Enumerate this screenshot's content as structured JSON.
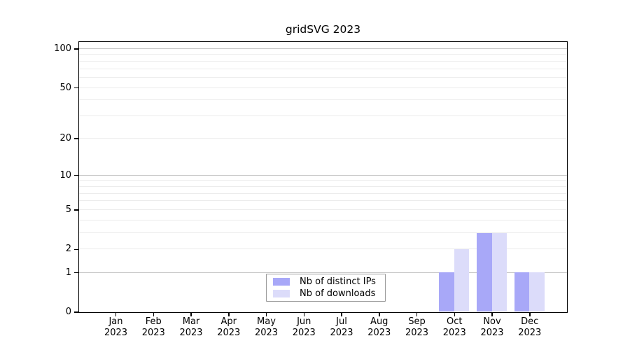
{
  "chart_data": {
    "type": "bar",
    "title": "gridSVG 2023",
    "xlabel": "",
    "ylabel": "",
    "scale": "log1p",
    "ylim": [
      0,
      101
    ],
    "grid": true,
    "legend_position": "bottom-center",
    "categories": [
      "Jan",
      "Feb",
      "Mar",
      "Apr",
      "May",
      "Jun",
      "Jul",
      "Aug",
      "Sep",
      "Oct",
      "Nov",
      "Dec"
    ],
    "category_year": "2023",
    "y_tick_values": [
      0,
      1,
      2,
      5,
      10,
      20,
      50,
      100
    ],
    "y_tick_labels": [
      "0",
      "1",
      "2",
      "5",
      "10",
      "20",
      "50",
      "100"
    ],
    "minor_grid_values": [
      2,
      3,
      4,
      5,
      6,
      7,
      8,
      9,
      20,
      30,
      40,
      50,
      60,
      70,
      80,
      90
    ],
    "major_grid_values": [
      1,
      10,
      100
    ],
    "series": [
      {
        "name": "Nb of distinct IPs",
        "color": "#a8a8f8",
        "values": [
          0,
          0,
          0,
          0,
          0,
          0,
          0,
          0,
          0,
          1,
          3,
          1
        ]
      },
      {
        "name": "Nb of downloads",
        "color": "#dcdcfa",
        "values": [
          0,
          0,
          0,
          0,
          0,
          0,
          0,
          0,
          0,
          2,
          3,
          1
        ]
      }
    ],
    "colors": {
      "axis": "#000000",
      "minor_grid": "#ececec",
      "major_grid": "#c6c6c6",
      "background": "#ffffff"
    }
  }
}
